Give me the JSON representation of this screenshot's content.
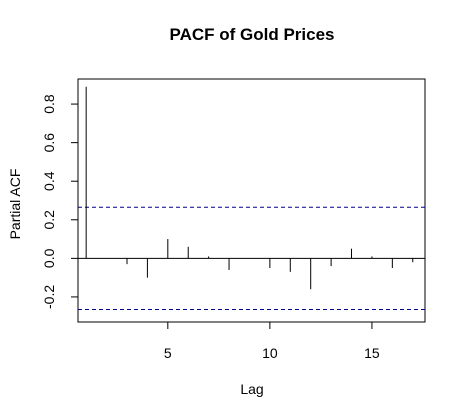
{
  "chart_data": {
    "type": "bar",
    "title": "PACF of Gold Prices",
    "xlabel": "Lag",
    "ylabel": "Partial ACF",
    "xlim": [
      0.6,
      17.6
    ],
    "ylim": [
      -0.33,
      0.93
    ],
    "x_ticks": [
      5,
      10,
      15
    ],
    "y_ticks": [
      -0.2,
      0.0,
      0.2,
      0.4,
      0.6,
      0.8
    ],
    "y_tick_labels": [
      "-0.2",
      "0.0",
      "0.2",
      "0.4",
      "0.6",
      "0.8"
    ],
    "lags": [
      1,
      2,
      3,
      4,
      5,
      6,
      7,
      8,
      9,
      10,
      11,
      12,
      13,
      14,
      15,
      16,
      17
    ],
    "values": [
      0.89,
      0.0,
      -0.03,
      -0.1,
      0.1,
      0.06,
      0.01,
      -0.06,
      0.0,
      -0.05,
      -0.07,
      -0.16,
      -0.04,
      0.05,
      0.01,
      -0.05,
      -0.02
    ],
    "confidence_bound": 0.265,
    "colors": {
      "bars": "#000000",
      "confidence_lines": "#00008b",
      "zero_line": "#000000"
    }
  }
}
